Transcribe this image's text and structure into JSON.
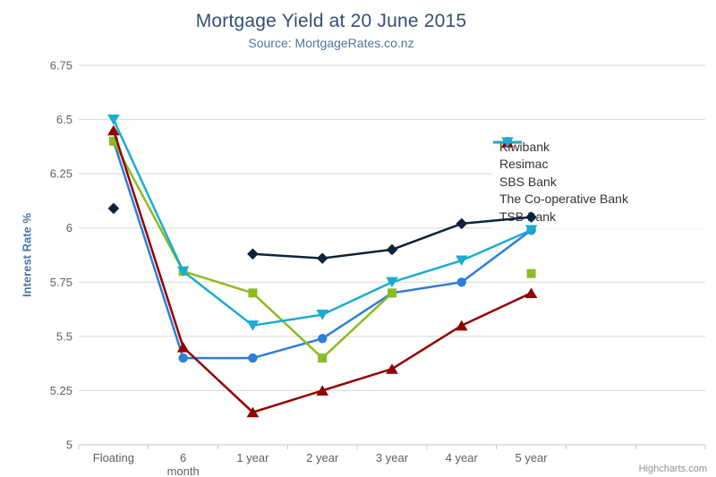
{
  "chart_data": {
    "type": "line",
    "title": "Mortgage Yield at 20 June 2015",
    "subtitle": "Source: MortgageRates.co.nz",
    "ylabel": "Interest Rate %",
    "xlabel": "",
    "ylim": [
      5,
      6.75
    ],
    "yticks": [
      5,
      5.25,
      5.5,
      5.75,
      6,
      6.25,
      6.5,
      6.75
    ],
    "grid": true,
    "legend_position": "right-inside-floating",
    "categories": [
      "Floating",
      "6 month",
      "1 year",
      "2 year",
      "3 year",
      "4 year",
      "5 year"
    ],
    "category_lines": [
      [
        "Floating"
      ],
      [
        "6",
        "month"
      ],
      [
        "1 year"
      ],
      [
        "2 year"
      ],
      [
        "3 year"
      ],
      [
        "4 year"
      ],
      [
        "5 year"
      ]
    ],
    "series": [
      {
        "name": "Kiwibank",
        "color": "#2f7ed8",
        "marker": "circle",
        "values": [
          6.4,
          5.4,
          5.4,
          5.49,
          5.7,
          5.75,
          5.99
        ]
      },
      {
        "name": "Resimac",
        "color": "#0d233a",
        "marker": "diamond",
        "values": [
          6.09,
          null,
          5.88,
          5.86,
          5.9,
          6.02,
          6.05
        ]
      },
      {
        "name": "SBS Bank",
        "color": "#8bbc21",
        "marker": "square",
        "values": [
          6.4,
          5.8,
          5.7,
          5.4,
          5.7,
          null,
          5.79
        ]
      },
      {
        "name": "The Co-operative Bank",
        "color": "#910000",
        "marker": "triangle",
        "values": [
          6.45,
          5.45,
          5.15,
          5.25,
          5.35,
          5.55,
          5.7
        ]
      },
      {
        "name": "TSB Bank",
        "color": "#1aadce",
        "marker": "triangle-down",
        "values": [
          6.5,
          5.8,
          5.55,
          5.6,
          5.75,
          5.85,
          5.99
        ]
      }
    ],
    "credits": "Highcharts.com"
  },
  "style": {
    "grid_color": "#d8d8d8",
    "axis_line_color": "#c0c8d0",
    "tick_label_color": "#606060",
    "title_color": "#345070",
    "subtitle_color": "#4d759e",
    "axis_title_color": "#4d759e",
    "legend_text_color": "#333333"
  }
}
